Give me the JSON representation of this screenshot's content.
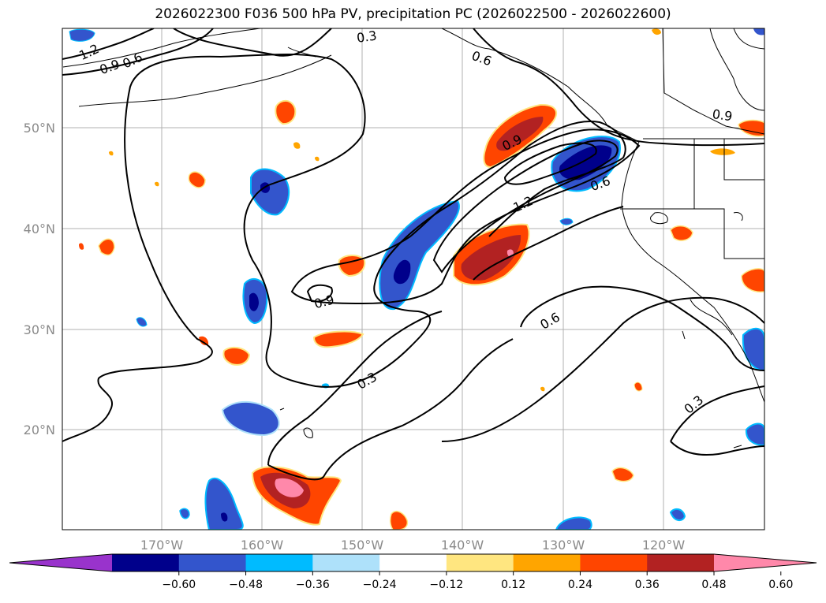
{
  "title": "2026022300 F036 500 hPa PV, precipitation PC (2026022500 - 2026022600)",
  "map": {
    "lat_labels": [
      "50°N",
      "40°N",
      "30°N",
      "20°N"
    ],
    "lon_labels": [
      "170°W",
      "160°W",
      "150°W",
      "140°W",
      "130°W",
      "120°W"
    ],
    "contour_labels": [
      {
        "text": "1.2"
      },
      {
        "text": "0.9"
      },
      {
        "text": "0.6"
      },
      {
        "text": "0.3"
      },
      {
        "text": "0.6"
      },
      {
        "text": "0.9"
      },
      {
        "text": "0.9"
      },
      {
        "text": "1.2"
      },
      {
        "text": "0.6"
      },
      {
        "text": "0.9"
      },
      {
        "text": "0.6"
      },
      {
        "text": "0.3"
      },
      {
        "text": "0.3"
      }
    ],
    "land_color": "#ffffff",
    "grid_color": "#b0b0b0"
  },
  "colorbar": {
    "colors": [
      "#9933cc",
      "#00008b",
      "#3355cc",
      "#00bbff",
      "#aee1fa",
      "#ffffff",
      "#ffe680",
      "#ffa500",
      "#ff4500",
      "#b22222",
      "#ff88aa"
    ],
    "tick_labels": [
      "−0.60",
      "−0.48",
      "−0.36",
      "−0.24",
      "−0.12",
      "0.12",
      "0.24",
      "0.36",
      "0.48",
      "0.60"
    ]
  }
}
